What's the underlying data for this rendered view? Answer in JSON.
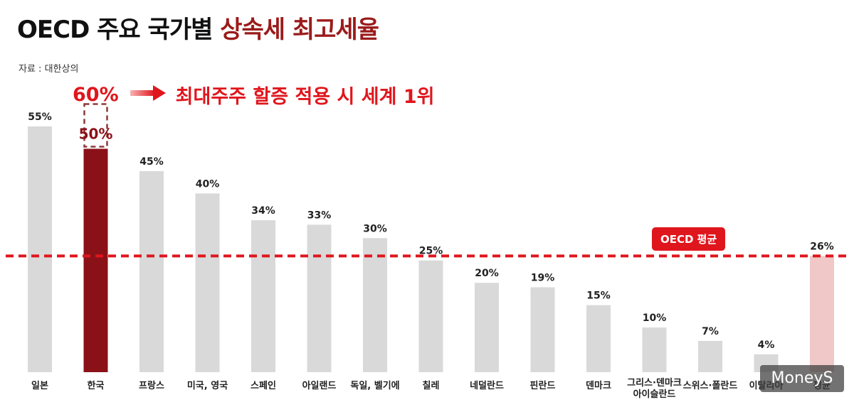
{
  "title": {
    "main": "OECD 주요 국가별 ",
    "accent": "상속세 최고세율"
  },
  "source": "자료 : 대한상의",
  "callout": {
    "value": "60%",
    "text": "최대주주 할증 적용 시 세계 1위"
  },
  "avg_badge": "OECD 평균",
  "watermark": "MoneyS",
  "colors": {
    "bar_default": "#d9d9d9",
    "bar_korea": "#8b1118",
    "bar_average": "#f0c8c8",
    "accent_red": "#e0161d",
    "dashed_box": "#8b3a3a"
  },
  "chart_data": {
    "type": "bar",
    "title": "OECD 주요 국가별 상속세 최고세율",
    "categories": [
      "일본",
      "한국",
      "프랑스",
      "미국, 영국",
      "스페인",
      "아일랜드",
      "독일, 벨기에",
      "칠레",
      "네덜란드",
      "핀란드",
      "덴마크",
      "그리스·덴마크 아이슬란드",
      "스위스·폴란드",
      "이탈리아",
      "평균"
    ],
    "category_lines": [
      [
        "일본"
      ],
      [
        "한국"
      ],
      [
        "프랑스"
      ],
      [
        "미국, 영국"
      ],
      [
        "스페인"
      ],
      [
        "아일랜드"
      ],
      [
        "독일, 벨기에"
      ],
      [
        "칠레"
      ],
      [
        "네덜란드"
      ],
      [
        "핀란드"
      ],
      [
        "덴마크"
      ],
      [
        "그리스·덴마크",
        "아이슬란드"
      ],
      [
        "스위스·폴란드"
      ],
      [
        "이탈리아"
      ],
      [
        "평균"
      ]
    ],
    "values": [
      55,
      50,
      45,
      40,
      34,
      33,
      30,
      25,
      20,
      19,
      15,
      10,
      7,
      4,
      26
    ],
    "value_labels": [
      "55%",
      "50%",
      "45%",
      "40%",
      "34%",
      "33%",
      "30%",
      "25%",
      "20%",
      "19%",
      "15%",
      "10%",
      "7%",
      "4%",
      "26%"
    ],
    "highlight": {
      "category": "한국",
      "with_surcharge": 60,
      "label": "50%"
    },
    "average_line": 26,
    "ylim": [
      0,
      55
    ],
    "grid": false,
    "legend": "none"
  }
}
